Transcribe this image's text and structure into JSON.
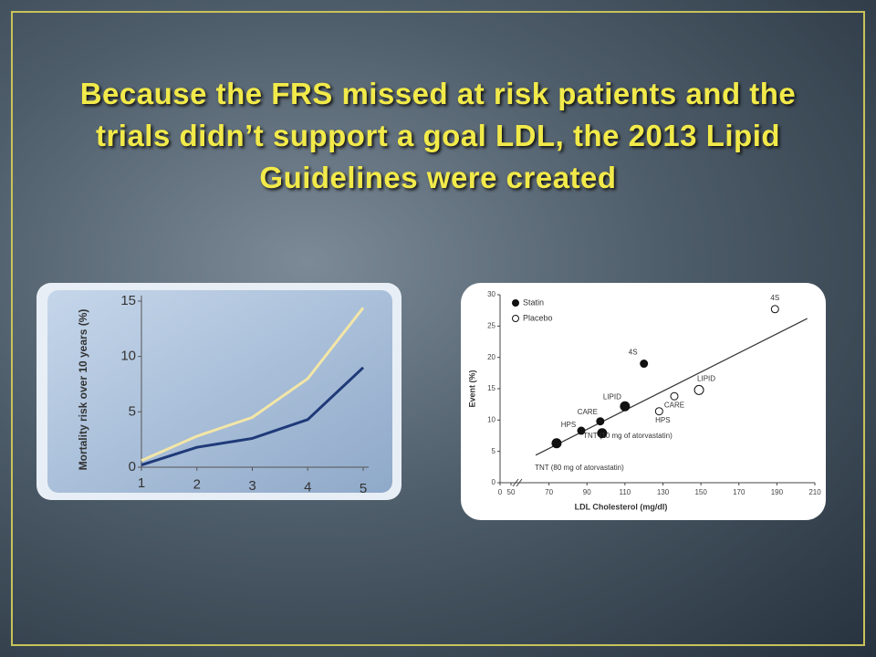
{
  "title": "Because the FRS missed at risk patients and the trials didn’t support a goal LDL, the 2013 Lipid Guidelines were created",
  "chart_data": [
    {
      "type": "line",
      "y_label": "Mortality risk over 10 years (%)",
      "x": [
        1,
        2,
        3,
        4,
        5
      ],
      "xlim": [
        1,
        5.1
      ],
      "xticks": [
        1,
        2,
        3,
        4,
        5
      ],
      "ylim": [
        0,
        15.5
      ],
      "yticks": [
        0,
        5,
        10,
        15
      ],
      "series": [
        {
          "color": "#f3e6a6",
          "values": [
            0.6,
            2.8,
            4.5,
            8,
            14.4
          ]
        },
        {
          "color": "#1f3a78",
          "values": [
            0.2,
            1.8,
            2.6,
            4.3,
            9.0
          ]
        }
      ]
    },
    {
      "type": "scatter",
      "x_label": "LDL Cholesterol (mg/dl)",
      "y_label": "Event (%)",
      "xlim": [
        0,
        210
      ],
      "xticks": [
        0,
        50,
        70,
        90,
        110,
        130,
        150,
        170,
        190,
        210
      ],
      "axis_break": true,
      "ylim": [
        0,
        30
      ],
      "yticks": [
        0,
        5,
        10,
        15,
        20,
        25,
        30
      ],
      "series": [
        {
          "name": "Statin",
          "filled": true,
          "color": "#111111",
          "x": [
            120,
            110,
            97,
            87,
            98,
            74
          ],
          "values": [
            19,
            12.2,
            9.8,
            8.3,
            7.9,
            6.3
          ],
          "labels": [
            "4S",
            "LIPID",
            "CARE",
            "HPS",
            "TNT (10 mg of atorvastatin)",
            "TNT (80 mg of atorvastatin)"
          ]
        },
        {
          "name": "Placebo",
          "filled": false,
          "color": "#111111",
          "x": [
            189,
            149,
            136,
            128
          ],
          "values": [
            27.7,
            14.8,
            13.8,
            11.4
          ],
          "labels": [
            "4S",
            "LIPID",
            "CARE",
            "HPS"
          ]
        }
      ],
      "trendline": {
        "x": [
          63,
          206
        ],
        "values": [
          4.4,
          26.2
        ],
        "color": "#333333"
      }
    }
  ]
}
